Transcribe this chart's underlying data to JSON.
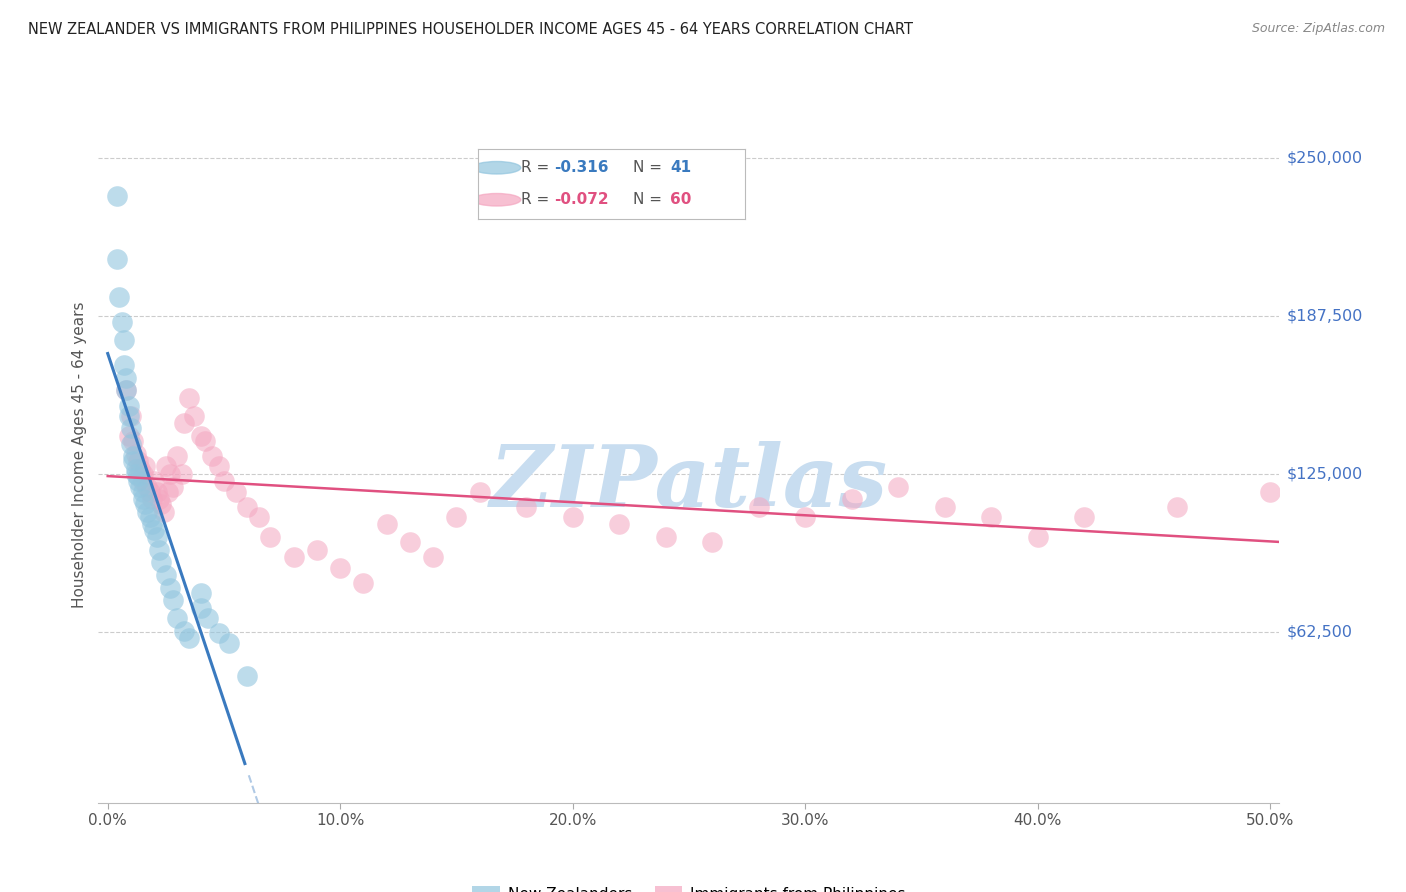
{
  "title": "NEW ZEALANDER VS IMMIGRANTS FROM PHILIPPINES HOUSEHOLDER INCOME AGES 45 - 64 YEARS CORRELATION CHART",
  "source": "Source: ZipAtlas.com",
  "ylabel": "Householder Income Ages 45 - 64 years",
  "xlabel_ticks": [
    "0.0%",
    "10.0%",
    "20.0%",
    "30.0%",
    "40.0%",
    "50.0%"
  ],
  "xlabel_vals": [
    0.0,
    0.1,
    0.2,
    0.3,
    0.4,
    0.5
  ],
  "ytick_labels": [
    "$62,500",
    "$125,000",
    "$187,500",
    "$250,000"
  ],
  "ytick_vals": [
    62500,
    125000,
    187500,
    250000
  ],
  "ylim": [
    -5000,
    270000
  ],
  "xlim": [
    -0.004,
    0.504
  ],
  "nz_R": -0.316,
  "nz_N": 41,
  "ph_R": -0.072,
  "ph_N": 60,
  "nz_color": "#92c5de",
  "ph_color": "#f4a6c0",
  "nz_line_color": "#3a7abf",
  "ph_line_color": "#e05080",
  "background_color": "#ffffff",
  "grid_color": "#cccccc",
  "title_color": "#333333",
  "ytick_color": "#4472c4",
  "watermark_color": "#c8ddf0",
  "watermark_text": "ZIPatlas",
  "nz_scatter_x": [
    0.004,
    0.004,
    0.005,
    0.006,
    0.007,
    0.007,
    0.008,
    0.008,
    0.009,
    0.009,
    0.01,
    0.01,
    0.011,
    0.011,
    0.012,
    0.012,
    0.013,
    0.013,
    0.014,
    0.015,
    0.015,
    0.016,
    0.017,
    0.018,
    0.019,
    0.02,
    0.021,
    0.022,
    0.023,
    0.025,
    0.027,
    0.028,
    0.03,
    0.033,
    0.035,
    0.04,
    0.04,
    0.043,
    0.048,
    0.052,
    0.06
  ],
  "nz_scatter_y": [
    235000,
    210000,
    195000,
    185000,
    178000,
    168000,
    163000,
    158000,
    152000,
    148000,
    143000,
    137000,
    132000,
    130000,
    127000,
    125000,
    124000,
    122000,
    120000,
    118000,
    115000,
    113000,
    110000,
    108000,
    105000,
    103000,
    100000,
    95000,
    90000,
    85000,
    80000,
    75000,
    68000,
    63000,
    60000,
    78000,
    72000,
    68000,
    62000,
    58000,
    45000
  ],
  "ph_scatter_x": [
    0.008,
    0.009,
    0.01,
    0.011,
    0.012,
    0.013,
    0.014,
    0.015,
    0.015,
    0.016,
    0.017,
    0.018,
    0.019,
    0.02,
    0.021,
    0.022,
    0.023,
    0.024,
    0.025,
    0.026,
    0.027,
    0.028,
    0.03,
    0.032,
    0.033,
    0.035,
    0.037,
    0.04,
    0.042,
    0.045,
    0.048,
    0.05,
    0.055,
    0.06,
    0.065,
    0.07,
    0.08,
    0.09,
    0.1,
    0.11,
    0.12,
    0.13,
    0.14,
    0.15,
    0.16,
    0.18,
    0.2,
    0.22,
    0.24,
    0.26,
    0.28,
    0.3,
    0.32,
    0.34,
    0.36,
    0.38,
    0.4,
    0.42,
    0.46,
    0.5
  ],
  "ph_scatter_y": [
    158000,
    140000,
    148000,
    138000,
    133000,
    130000,
    127000,
    125000,
    122000,
    128000,
    120000,
    118000,
    115000,
    122000,
    118000,
    115000,
    113000,
    110000,
    128000,
    118000,
    125000,
    120000,
    132000,
    125000,
    145000,
    155000,
    148000,
    140000,
    138000,
    132000,
    128000,
    122000,
    118000,
    112000,
    108000,
    100000,
    92000,
    95000,
    88000,
    82000,
    105000,
    98000,
    92000,
    108000,
    118000,
    112000,
    108000,
    105000,
    100000,
    98000,
    112000,
    108000,
    115000,
    120000,
    112000,
    108000,
    100000,
    108000,
    112000,
    118000
  ]
}
